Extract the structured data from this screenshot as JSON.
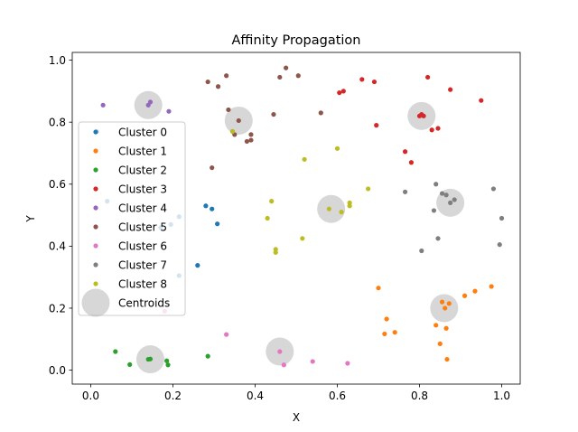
{
  "chart_data": {
    "type": "scatter",
    "title": "Affinity Propagation",
    "xlabel": "X",
    "ylabel": "Y",
    "xlim": [
      -0.045,
      1.045
    ],
    "ylim": [
      -0.045,
      1.025
    ],
    "xticks": [
      0.0,
      0.2,
      0.4,
      0.6,
      0.8,
      1.0
    ],
    "yticks": [
      0.0,
      0.2,
      0.4,
      0.6,
      0.8,
      1.0
    ],
    "xtick_labels": [
      "0.0",
      "0.2",
      "0.4",
      "0.6",
      "0.8",
      "1.0"
    ],
    "ytick_labels": [
      "0.0",
      "0.2",
      "0.4",
      "0.6",
      "0.8",
      "1.0"
    ],
    "grid": false,
    "legend_position": "center-left",
    "series": [
      {
        "name": "Cluster 0",
        "color": "#1f77b4",
        "points": [
          [
            0.015,
            0.77
          ],
          [
            0.04,
            0.545
          ],
          [
            0.17,
            0.46
          ],
          [
            0.195,
            0.47
          ],
          [
            0.215,
            0.495
          ],
          [
            0.215,
            0.305
          ],
          [
            0.26,
            0.338
          ],
          [
            0.28,
            0.53
          ],
          [
            0.295,
            0.52
          ],
          [
            0.308,
            0.472
          ]
        ]
      },
      {
        "name": "Cluster 1",
        "color": "#ff7f0e",
        "points": [
          [
            0.7,
            0.265
          ],
          [
            0.715,
            0.117
          ],
          [
            0.72,
            0.165
          ],
          [
            0.74,
            0.122
          ],
          [
            0.84,
            0.145
          ],
          [
            0.85,
            0.085
          ],
          [
            0.855,
            0.22
          ],
          [
            0.862,
            0.2
          ],
          [
            0.865,
            0.135
          ],
          [
            0.867,
            0.035
          ],
          [
            0.872,
            0.215
          ],
          [
            0.91,
            0.24
          ],
          [
            0.935,
            0.255
          ],
          [
            0.975,
            0.27
          ]
        ]
      },
      {
        "name": "Cluster 2",
        "color": "#2ca02c",
        "points": [
          [
            0.06,
            0.06
          ],
          [
            0.095,
            0.018
          ],
          [
            0.14,
            0.035
          ],
          [
            0.145,
            0.036
          ],
          [
            0.185,
            0.03
          ],
          [
            0.188,
            0.017
          ],
          [
            0.285,
            0.045
          ]
        ]
      },
      {
        "name": "Cluster 3",
        "color": "#d62728",
        "points": [
          [
            0.605,
            0.895
          ],
          [
            0.615,
            0.9
          ],
          [
            0.66,
            0.938
          ],
          [
            0.69,
            0.93
          ],
          [
            0.695,
            0.79
          ],
          [
            0.765,
            0.705
          ],
          [
            0.78,
            0.67
          ],
          [
            0.8,
            0.82
          ],
          [
            0.805,
            0.825
          ],
          [
            0.81,
            0.82
          ],
          [
            0.82,
            0.945
          ],
          [
            0.83,
            0.775
          ],
          [
            0.845,
            0.78
          ],
          [
            0.875,
            0.905
          ],
          [
            0.95,
            0.87
          ]
        ]
      },
      {
        "name": "Cluster 4",
        "color": "#9467bd",
        "points": [
          [
            0.03,
            0.855
          ],
          [
            0.14,
            0.855
          ],
          [
            0.145,
            0.865
          ],
          [
            0.19,
            0.835
          ]
        ]
      },
      {
        "name": "Cluster 5",
        "color": "#8c564b",
        "points": [
          [
            0.285,
            0.93
          ],
          [
            0.295,
            0.653
          ],
          [
            0.31,
            0.915
          ],
          [
            0.33,
            0.95
          ],
          [
            0.335,
            0.84
          ],
          [
            0.345,
            0.77
          ],
          [
            0.35,
            0.76
          ],
          [
            0.36,
            0.805
          ],
          [
            0.38,
            0.738
          ],
          [
            0.39,
            0.76
          ],
          [
            0.39,
            0.742
          ],
          [
            0.445,
            0.825
          ],
          [
            0.46,
            0.945
          ],
          [
            0.475,
            0.975
          ],
          [
            0.505,
            0.95
          ],
          [
            0.56,
            0.83
          ]
        ]
      },
      {
        "name": "Cluster 6",
        "color": "#e377c2",
        "points": [
          [
            0.18,
            0.19
          ],
          [
            0.33,
            0.115
          ],
          [
            0.46,
            0.06
          ],
          [
            0.47,
            0.017
          ],
          [
            0.54,
            0.028
          ],
          [
            0.625,
            0.022
          ]
        ]
      },
      {
        "name": "Cluster 7",
        "color": "#7f7f7f",
        "points": [
          [
            0.765,
            0.575
          ],
          [
            0.805,
            0.385
          ],
          [
            0.835,
            0.515
          ],
          [
            0.84,
            0.6
          ],
          [
            0.845,
            0.425
          ],
          [
            0.855,
            0.57
          ],
          [
            0.865,
            0.565
          ],
          [
            0.875,
            0.54
          ],
          [
            0.885,
            0.55
          ],
          [
            0.98,
            0.585
          ],
          [
            0.995,
            0.405
          ],
          [
            1.0,
            0.49
          ]
        ]
      },
      {
        "name": "Cluster 8",
        "color": "#bcbd22",
        "points": [
          [
            0.345,
            0.77
          ],
          [
            0.43,
            0.49
          ],
          [
            0.44,
            0.545
          ],
          [
            0.45,
            0.39
          ],
          [
            0.45,
            0.38
          ],
          [
            0.515,
            0.425
          ],
          [
            0.52,
            0.68
          ],
          [
            0.58,
            0.52
          ],
          [
            0.6,
            0.715
          ],
          [
            0.61,
            0.51
          ],
          [
            0.63,
            0.53
          ],
          [
            0.63,
            0.54
          ],
          [
            0.675,
            0.585
          ]
        ]
      }
    ],
    "centroids": {
      "name": "Centroids",
      "color": "#b0b0b0",
      "points": [
        [
          0.145,
          0.035
        ],
        [
          0.14,
          0.855
        ],
        [
          0.36,
          0.805
        ],
        [
          0.46,
          0.06
        ],
        [
          0.585,
          0.52
        ],
        [
          0.805,
          0.82
        ],
        [
          0.86,
          0.2
        ],
        [
          0.875,
          0.54
        ]
      ]
    }
  }
}
